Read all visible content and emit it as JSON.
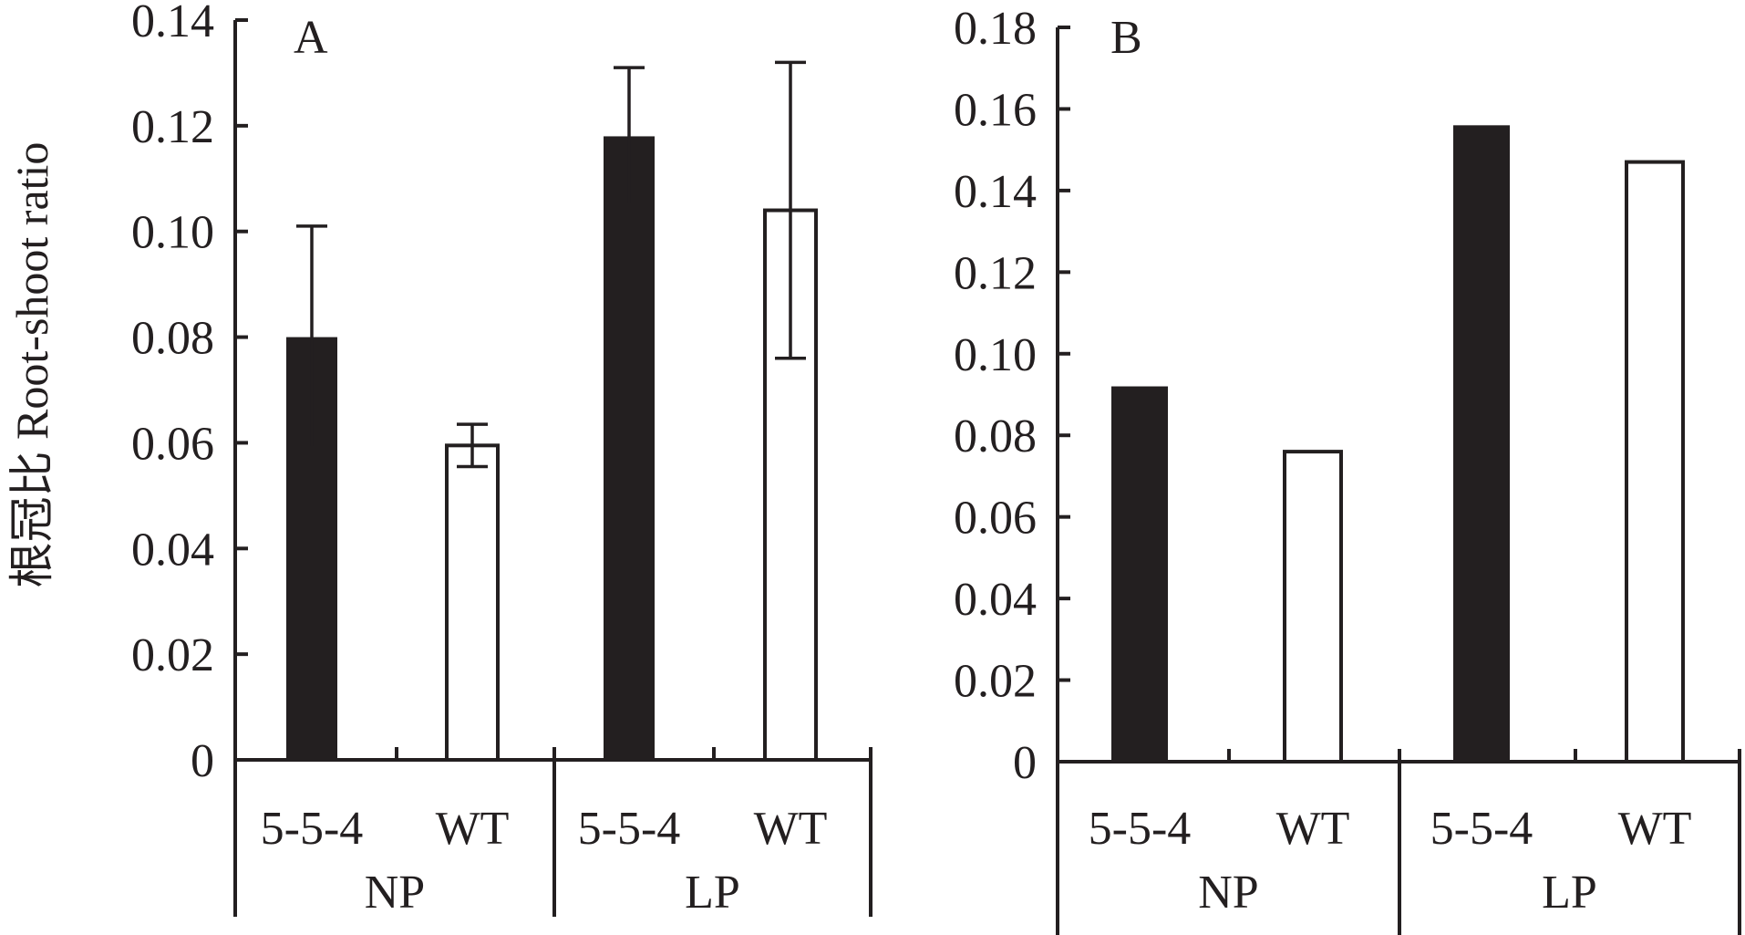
{
  "colors": {
    "ink": "#231f20",
    "filled_bar": "#231f20",
    "open_bar": "#ffffff"
  },
  "chart_data": [
    {
      "type": "bar",
      "panel_label": "A",
      "ylabel": "根冠比 Root-shoot ratio",
      "ylim": [
        0,
        0.14
      ],
      "yticks": [
        "0",
        "0.02",
        "0.04",
        "0.06",
        "0.08",
        "0.10",
        "0.12",
        "0.14"
      ],
      "ytick_values": [
        0,
        0.02,
        0.04,
        0.06,
        0.08,
        0.1,
        0.12,
        0.14
      ],
      "groups": [
        "NP",
        "LP"
      ],
      "categories": [
        "5-5-4",
        "WT",
        "5-5-4",
        "WT"
      ],
      "series": [
        {
          "name": "Root-shoot ratio",
          "values": [
            0.08,
            0.0595,
            0.118,
            0.104
          ],
          "errors": [
            0.021,
            0.004,
            0.013,
            0.028
          ],
          "styles": [
            "filled",
            "open",
            "filled",
            "open"
          ]
        }
      ]
    },
    {
      "type": "bar",
      "panel_label": "B",
      "ylabel": "",
      "ylim": [
        0,
        0.18
      ],
      "yticks": [
        "0",
        "0.02",
        "0.04",
        "0.06",
        "0.08",
        "0.10",
        "0.12",
        "0.14",
        "0.16",
        "0.18"
      ],
      "ytick_values": [
        0,
        0.02,
        0.04,
        0.06,
        0.08,
        0.1,
        0.12,
        0.14,
        0.16,
        0.18
      ],
      "groups": [
        "NP",
        "LP"
      ],
      "categories": [
        "5-5-4",
        "WT",
        "5-5-4",
        "WT"
      ],
      "series": [
        {
          "name": "Root-shoot ratio",
          "values": [
            0.092,
            0.076,
            0.156,
            0.147
          ],
          "styles": [
            "filled",
            "open",
            "filled",
            "open"
          ]
        }
      ]
    }
  ]
}
